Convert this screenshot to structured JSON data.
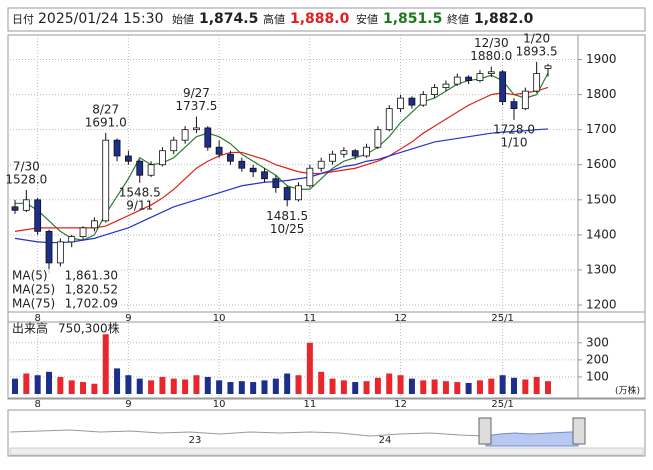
{
  "header": {
    "date_label": "日付",
    "datetime": "2025/01/24 15:30",
    "open_label": "始値",
    "open": "1,874.5",
    "high_label": "高値",
    "high": "1,888.0",
    "low_label": "安値",
    "low": "1,851.5",
    "close_label": "終値",
    "close": "1,882.0"
  },
  "chart_data": [
    {
      "type": "candlestick",
      "categories": [
        null,
        null,
        "8",
        null,
        null,
        null,
        null,
        null,
        null,
        null,
        "9",
        null,
        null,
        null,
        null,
        null,
        null,
        null,
        "10",
        null,
        null,
        null,
        null,
        null,
        null,
        null,
        "11",
        null,
        null,
        null,
        null,
        null,
        null,
        null,
        "12",
        null,
        null,
        null,
        null,
        null,
        null,
        null,
        null,
        "25/1",
        null,
        null,
        null,
        null
      ],
      "ohlc": [
        [
          1480,
          1500,
          1460,
          1470
        ],
        [
          1470,
          1528,
          1465,
          1500
        ],
        [
          1500,
          1505,
          1400,
          1410
        ],
        [
          1410,
          1415,
          1290,
          1320
        ],
        [
          1320,
          1390,
          1310,
          1380
        ],
        [
          1380,
          1400,
          1365,
          1395
        ],
        [
          1395,
          1425,
          1385,
          1420
        ],
        [
          1420,
          1450,
          1410,
          1440
        ],
        [
          1440,
          1691,
          1435,
          1670
        ],
        [
          1670,
          1675,
          1610,
          1625
        ],
        [
          1625,
          1640,
          1600,
          1610
        ],
        [
          1610,
          1615,
          1548.5,
          1570
        ],
        [
          1570,
          1610,
          1565,
          1600
        ],
        [
          1600,
          1650,
          1595,
          1640
        ],
        [
          1640,
          1680,
          1630,
          1670
        ],
        [
          1670,
          1710,
          1660,
          1700
        ],
        [
          1700,
          1737.5,
          1690,
          1705
        ],
        [
          1705,
          1710,
          1640,
          1650
        ],
        [
          1650,
          1670,
          1620,
          1630
        ],
        [
          1630,
          1640,
          1600,
          1610
        ],
        [
          1610,
          1620,
          1580,
          1590
        ],
        [
          1590,
          1600,
          1565,
          1580
        ],
        [
          1580,
          1590,
          1550,
          1560
        ],
        [
          1560,
          1570,
          1520,
          1535
        ],
        [
          1535,
          1540,
          1481.5,
          1500
        ],
        [
          1500,
          1550,
          1495,
          1540
        ],
        [
          1540,
          1600,
          1535,
          1590
        ],
        [
          1590,
          1620,
          1580,
          1610
        ],
        [
          1610,
          1640,
          1600,
          1630
        ],
        [
          1630,
          1650,
          1620,
          1640
        ],
        [
          1640,
          1645,
          1615,
          1625
        ],
        [
          1625,
          1660,
          1620,
          1650
        ],
        [
          1650,
          1710,
          1645,
          1700
        ],
        [
          1700,
          1770,
          1695,
          1760
        ],
        [
          1760,
          1800,
          1750,
          1790
        ],
        [
          1790,
          1795,
          1760,
          1770
        ],
        [
          1770,
          1810,
          1765,
          1800
        ],
        [
          1800,
          1830,
          1790,
          1820
        ],
        [
          1820,
          1840,
          1810,
          1830
        ],
        [
          1830,
          1860,
          1825,
          1850
        ],
        [
          1850,
          1855,
          1830,
          1840
        ],
        [
          1840,
          1870,
          1835,
          1860
        ],
        [
          1860,
          1880,
          1850,
          1865
        ],
        [
          1865,
          1870,
          1770,
          1780
        ],
        [
          1780,
          1790,
          1728,
          1760
        ],
        [
          1760,
          1820,
          1755,
          1810
        ],
        [
          1810,
          1893.5,
          1805,
          1860
        ],
        [
          1874.5,
          1888,
          1851.5,
          1882
        ]
      ],
      "up_color": "#ffffff",
      "down_color": "#1c2f8a",
      "ylim": [
        1180,
        1970
      ],
      "yticks": [
        1200,
        1300,
        1400,
        1500,
        1600,
        1700,
        1800,
        1900
      ],
      "grid": true,
      "annotations": [
        {
          "date": "7/30",
          "value": 1528,
          "label": "1528.0"
        },
        {
          "date": "8/27",
          "value": 1691,
          "label": "1691.0"
        },
        {
          "date": "9/27",
          "value": 1737.5,
          "label": "1737.5"
        },
        {
          "date": "12/30",
          "value": 1880,
          "label": "1880.0"
        },
        {
          "date": "1/20",
          "value": 1893.5,
          "label": "1893.5"
        },
        {
          "date": "9/11",
          "value": 1548.5,
          "label": "1548.5"
        },
        {
          "date": "10/25",
          "value": 1481.5,
          "label": "1481.5"
        },
        {
          "date": "1/10",
          "value": 1728,
          "label": "1728.0"
        }
      ],
      "series": [
        {
          "name": "MA(5)",
          "color": "#2e7d32",
          "values": [
            1490,
            1490,
            1470,
            1440,
            1410,
            1390,
            1385,
            1400,
            1460,
            1510,
            1560,
            1620,
            1600,
            1605,
            1620,
            1650,
            1680,
            1690,
            1680,
            1660,
            1630,
            1610,
            1590,
            1570,
            1540,
            1530,
            1530,
            1560,
            1590,
            1610,
            1620,
            1630,
            1650,
            1680,
            1720,
            1750,
            1780,
            1790,
            1810,
            1830,
            1840,
            1845,
            1855,
            1840,
            1800,
            1790,
            1800,
            1861.3
          ],
          "value_labels": [
            null,
            null,
            null,
            null,
            null,
            null,
            null,
            null,
            null,
            null,
            null,
            null,
            null,
            null,
            null,
            null,
            null,
            null,
            null,
            null,
            null,
            null,
            null,
            null,
            null,
            null,
            null,
            null,
            null,
            null,
            null,
            null,
            null,
            null,
            null,
            null,
            null,
            null,
            null,
            null,
            null,
            null,
            null,
            null,
            null,
            null,
            null,
            "1,861.30"
          ]
        },
        {
          "name": "MA(25)",
          "color": "#e02020",
          "values": [
            1410,
            1415,
            1420,
            1420,
            1420,
            1420,
            1420,
            1420,
            1425,
            1440,
            1455,
            1470,
            1485,
            1505,
            1530,
            1560,
            1590,
            1610,
            1625,
            1635,
            1635,
            1625,
            1615,
            1600,
            1590,
            1580,
            1575,
            1575,
            1580,
            1585,
            1590,
            1600,
            1610,
            1625,
            1645,
            1665,
            1690,
            1710,
            1730,
            1750,
            1770,
            1785,
            1800,
            1805,
            1800,
            1805,
            1810,
            1820.52
          ],
          "value_labels": [
            null,
            null,
            null,
            null,
            null,
            null,
            null,
            null,
            null,
            null,
            null,
            null,
            null,
            null,
            null,
            null,
            null,
            null,
            null,
            null,
            null,
            null,
            null,
            null,
            null,
            null,
            null,
            null,
            null,
            null,
            null,
            null,
            null,
            null,
            null,
            null,
            null,
            null,
            null,
            null,
            null,
            null,
            null,
            null,
            null,
            null,
            null,
            "1,820.52"
          ]
        },
        {
          "name": "MA(75)",
          "color": "#2233cc",
          "values": [
            1390,
            1385,
            1380,
            1378,
            1378,
            1380,
            1385,
            1390,
            1400,
            1410,
            1420,
            1435,
            1450,
            1465,
            1480,
            1490,
            1500,
            1510,
            1520,
            1530,
            1540,
            1545,
            1550,
            1552,
            1555,
            1560,
            1565,
            1575,
            1585,
            1595,
            1600,
            1610,
            1615,
            1625,
            1635,
            1645,
            1655,
            1665,
            1670,
            1675,
            1680,
            1685,
            1690,
            1693,
            1695,
            1697,
            1700,
            1702.09
          ],
          "value_labels": [
            null,
            null,
            null,
            null,
            null,
            null,
            null,
            null,
            null,
            null,
            null,
            null,
            null,
            null,
            null,
            null,
            null,
            null,
            null,
            null,
            null,
            null,
            null,
            null,
            null,
            null,
            null,
            null,
            null,
            null,
            null,
            null,
            null,
            null,
            null,
            null,
            null,
            null,
            null,
            null,
            null,
            null,
            null,
            null,
            null,
            null,
            null,
            "1,702.09"
          ]
        }
      ]
    },
    {
      "type": "bar",
      "title": "出来高",
      "unit": "(万株)",
      "categories": [
        null,
        null,
        "8",
        null,
        null,
        null,
        null,
        null,
        null,
        null,
        "9",
        null,
        null,
        null,
        null,
        null,
        null,
        null,
        "10",
        null,
        null,
        null,
        null,
        null,
        null,
        null,
        "11",
        null,
        null,
        null,
        null,
        null,
        null,
        null,
        "12",
        null,
        null,
        null,
        null,
        null,
        null,
        null,
        null,
        "25/1",
        null,
        null,
        null,
        null
      ],
      "values": [
        90,
        120,
        110,
        130,
        100,
        80,
        70,
        60,
        350,
        150,
        110,
        90,
        80,
        100,
        90,
        85,
        110,
        100,
        80,
        70,
        75,
        70,
        80,
        90,
        120,
        110,
        300,
        130,
        90,
        80,
        70,
        75,
        95,
        120,
        110,
        90,
        80,
        85,
        75,
        70,
        65,
        80,
        90,
        110,
        95,
        85,
        100,
        75.03
      ],
      "value_labels": [
        null,
        null,
        null,
        null,
        null,
        null,
        null,
        null,
        null,
        null,
        null,
        null,
        null,
        null,
        null,
        null,
        null,
        null,
        null,
        null,
        null,
        null,
        null,
        null,
        null,
        null,
        null,
        null,
        null,
        null,
        null,
        null,
        null,
        null,
        null,
        null,
        null,
        null,
        null,
        null,
        null,
        null,
        null,
        null,
        null,
        null,
        null,
        "750,300株"
      ],
      "up_color": "#e8262b",
      "down_color": "#1c2f8a",
      "ylim": [
        0,
        410
      ],
      "yticks": [
        100,
        200,
        300
      ],
      "grid": true
    }
  ],
  "navigator": {
    "labels": [
      "23",
      "24"
    ]
  }
}
